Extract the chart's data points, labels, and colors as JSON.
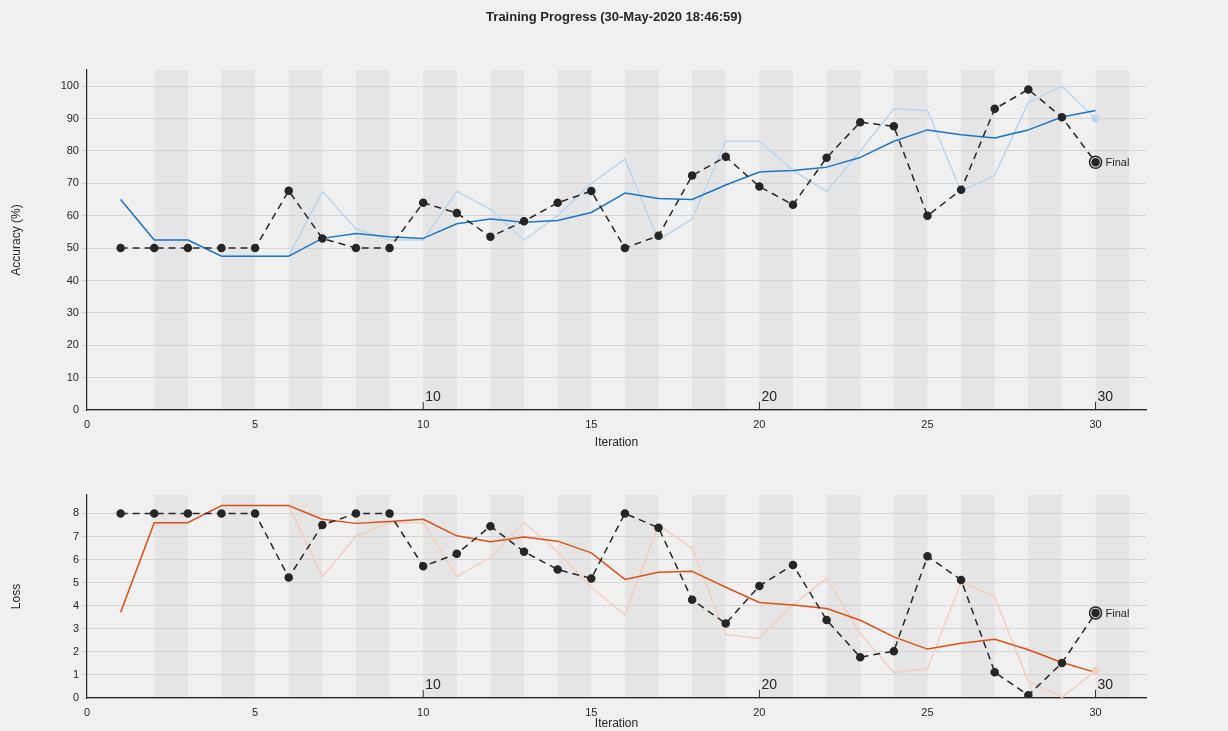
{
  "chart_data": [
    {
      "type": "line",
      "title": "Training Progress (30-May-2020 18:46:59)",
      "xlabel": "Iteration",
      "ylabel": "Accuracy (%)",
      "x": [
        1,
        2,
        3,
        4,
        5,
        6,
        7,
        8,
        9,
        10,
        11,
        12,
        13,
        14,
        15,
        16,
        17,
        18,
        19,
        20,
        21,
        22,
        23,
        24,
        25,
        26,
        27,
        28,
        29,
        30
      ],
      "series": [
        {
          "color": "#bcd6ec",
          "marker": "none",
          "line_style": "solid",
          "values": [
            65,
            52.5,
            52.5,
            47.5,
            47.5,
            47.5,
            67.5,
            56,
            52.5,
            52.5,
            67.5,
            62,
            52.5,
            60,
            70,
            77.5,
            52.5,
            59,
            83,
            83,
            74,
            67.5,
            80,
            93,
            92.5,
            67.5,
            72.5,
            95,
            100,
            90
          ]
        },
        {
          "color": "#1f77c4",
          "marker": "none",
          "line_style": "solid",
          "values": [
            65,
            52.5,
            52.5,
            47.5,
            47.5,
            47.5,
            53,
            54.5,
            53.5,
            53,
            57.5,
            59,
            58,
            58.5,
            61,
            67,
            65.3,
            65,
            69.5,
            73.5,
            74,
            75,
            78,
            83,
            86.5,
            85,
            84,
            86.5,
            90.5,
            92.5
          ]
        },
        {
          "type": "scatter",
          "color": "#bcd6ec",
          "marker": "circle",
          "x": [
            30
          ],
          "values": [
            90
          ]
        },
        {
          "color": "#262626",
          "marker": "circle",
          "line_style": "dashed",
          "values": [
            50,
            50,
            50,
            50,
            50,
            67.7,
            53,
            50,
            50,
            64,
            60.8,
            53.5,
            58.3,
            64,
            67.6,
            50,
            53.8,
            72.4,
            78.2,
            69,
            63.4,
            77.9,
            88.9,
            87.6,
            60,
            68,
            93,
            99,
            90.4,
            76.5
          ]
        }
      ],
      "xlim": [
        0,
        31.5
      ],
      "xticks": [
        0,
        5,
        10,
        15,
        20,
        25,
        30
      ],
      "ylim": [
        0,
        105
      ],
      "yticks": [
        0,
        10,
        20,
        30,
        40,
        50,
        60,
        70,
        80,
        90,
        100
      ],
      "grid": "y",
      "legend": false,
      "bands": [
        {
          "axis": "x",
          "from": 2,
          "to": 3,
          "color": "#e5e5e5"
        },
        {
          "axis": "x",
          "from": 4,
          "to": 5,
          "color": "#e5e5e5"
        },
        {
          "axis": "x",
          "from": 6,
          "to": 7,
          "color": "#e5e5e5"
        },
        {
          "axis": "x",
          "from": 8,
          "to": 9,
          "color": "#e5e5e5"
        },
        {
          "axis": "x",
          "from": 10,
          "to": 11,
          "color": "#e5e5e5"
        },
        {
          "axis": "x",
          "from": 12,
          "to": 13,
          "color": "#e5e5e5"
        },
        {
          "axis": "x",
          "from": 14,
          "to": 15,
          "color": "#e5e5e5"
        },
        {
          "axis": "x",
          "from": 16,
          "to": 17,
          "color": "#e5e5e5"
        },
        {
          "axis": "x",
          "from": 18,
          "to": 19,
          "color": "#e5e5e5"
        },
        {
          "axis": "x",
          "from": 20,
          "to": 21,
          "color": "#e5e5e5"
        },
        {
          "axis": "x",
          "from": 22,
          "to": 23,
          "color": "#e5e5e5"
        },
        {
          "axis": "x",
          "from": 24,
          "to": 25,
          "color": "#e5e5e5"
        },
        {
          "axis": "x",
          "from": 26,
          "to": 27,
          "color": "#e5e5e5"
        },
        {
          "axis": "x",
          "from": 28,
          "to": 29,
          "color": "#e5e5e5"
        },
        {
          "axis": "x",
          "from": 30,
          "to": 31,
          "color": "#e5e5e5"
        }
      ],
      "annotations": [
        {
          "text": "10",
          "x": 10,
          "y": 0
        },
        {
          "text": "20",
          "x": 20,
          "y": 0
        },
        {
          "text": "30",
          "x": 30,
          "y": 0
        },
        {
          "text": "Final",
          "x": 30,
          "y": 76.5
        }
      ]
    },
    {
      "type": "line",
      "xlabel": "Iteration",
      "ylabel": "Loss",
      "x": [
        1,
        2,
        3,
        4,
        5,
        6,
        7,
        8,
        9,
        10,
        11,
        12,
        13,
        14,
        15,
        16,
        17,
        18,
        19,
        20,
        21,
        22,
        23,
        24,
        25,
        26,
        27,
        28,
        29,
        30
      ],
      "series": [
        {
          "color": "#f3cfbf",
          "marker": "none",
          "line_style": "solid",
          "values": [
            3.72,
            7.6,
            7.6,
            8.34,
            8.34,
            8.34,
            5.26,
            7,
            7.6,
            7.6,
            5.26,
            6.1,
            7.6,
            6.34,
            4.8,
            3.6,
            7.5,
            6.49,
            2.74,
            2.58,
            4.03,
            5.2,
            2.8,
            1.11,
            1.26,
            5.03,
            4.38,
            0.72,
            0.03,
            1.18
          ]
        },
        {
          "color": "#d95319",
          "marker": "none",
          "line_style": "solid",
          "values": [
            3.72,
            7.6,
            7.6,
            8.34,
            8.34,
            8.34,
            7.75,
            7.57,
            7.65,
            7.75,
            7.03,
            6.77,
            6.98,
            6.8,
            6.29,
            5.14,
            5.45,
            5.49,
            4.8,
            4.14,
            4.03,
            3.88,
            3.37,
            2.65,
            2.12,
            2.37,
            2.55,
            2.09,
            1.54,
            1.11
          ]
        },
        {
          "type": "scatter",
          "color": "#f3cfbf",
          "marker": "circle",
          "x": [
            30
          ],
          "values": [
            1.18
          ]
        },
        {
          "color": "#262626",
          "marker": "circle",
          "line_style": "dashed",
          "values": [
            8,
            8,
            8,
            8,
            8,
            5.22,
            7.5,
            8,
            8,
            5.71,
            6.25,
            7.45,
            6.34,
            5.57,
            5.18,
            8,
            7.38,
            4.26,
            3.23,
            4.86,
            5.77,
            3.38,
            1.77,
            2.03,
            6.14,
            5.12,
            1.12,
            0.12,
            1.52,
            3.69
          ]
        }
      ],
      "xlim": [
        0,
        31.5
      ],
      "xticks": [
        0,
        5,
        10,
        15,
        20,
        25,
        30
      ],
      "ylim": [
        0,
        8.8
      ],
      "yticks": [
        0,
        1,
        2,
        3,
        4,
        5,
        6,
        7,
        8
      ],
      "grid": "y",
      "legend": false,
      "bands": [
        {
          "axis": "x",
          "from": 2,
          "to": 3,
          "color": "#e5e5e5"
        },
        {
          "axis": "x",
          "from": 4,
          "to": 5,
          "color": "#e5e5e5"
        },
        {
          "axis": "x",
          "from": 6,
          "to": 7,
          "color": "#e5e5e5"
        },
        {
          "axis": "x",
          "from": 8,
          "to": 9,
          "color": "#e5e5e5"
        },
        {
          "axis": "x",
          "from": 10,
          "to": 11,
          "color": "#e5e5e5"
        },
        {
          "axis": "x",
          "from": 12,
          "to": 13,
          "color": "#e5e5e5"
        },
        {
          "axis": "x",
          "from": 14,
          "to": 15,
          "color": "#e5e5e5"
        },
        {
          "axis": "x",
          "from": 16,
          "to": 17,
          "color": "#e5e5e5"
        },
        {
          "axis": "x",
          "from": 18,
          "to": 19,
          "color": "#e5e5e5"
        },
        {
          "axis": "x",
          "from": 20,
          "to": 21,
          "color": "#e5e5e5"
        },
        {
          "axis": "x",
          "from": 22,
          "to": 23,
          "color": "#e5e5e5"
        },
        {
          "axis": "x",
          "from": 24,
          "to": 25,
          "color": "#e5e5e5"
        },
        {
          "axis": "x",
          "from": 26,
          "to": 27,
          "color": "#e5e5e5"
        },
        {
          "axis": "x",
          "from": 28,
          "to": 29,
          "color": "#e5e5e5"
        },
        {
          "axis": "x",
          "from": 30,
          "to": 31,
          "color": "#e5e5e5"
        }
      ],
      "annotations": [
        {
          "text": "10",
          "x": 10,
          "y": 0
        },
        {
          "text": "20",
          "x": 20,
          "y": 0
        },
        {
          "text": "30",
          "x": 30,
          "y": 0
        },
        {
          "text": "Final",
          "x": 30,
          "y": 3.69
        }
      ]
    }
  ]
}
